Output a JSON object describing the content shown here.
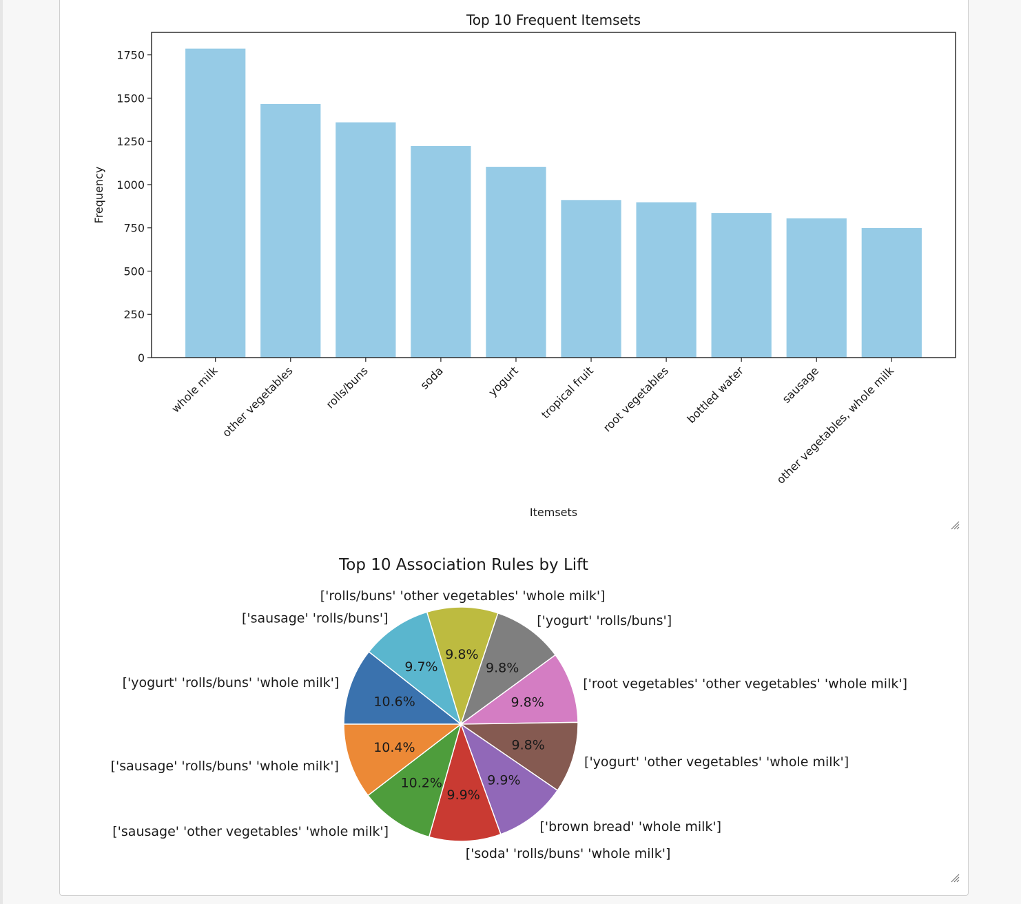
{
  "chart_data": [
    {
      "type": "bar",
      "title": "Top 10 Frequent Itemsets",
      "xlabel": "Itemsets",
      "ylabel": "Frequency",
      "categories": [
        "whole milk",
        "other vegetables",
        "rolls/buns",
        "soda",
        "yogurt",
        "tropical fruit",
        "root vegetables",
        "bottled water",
        "sausage",
        "other vegetables, whole milk"
      ],
      "values": [
        1786,
        1466,
        1360,
        1223,
        1103,
        911,
        898,
        836,
        805,
        749
      ],
      "ylim": [
        0,
        1880
      ],
      "yticks": [
        0,
        250,
        500,
        750,
        1000,
        1250,
        1500,
        1750
      ],
      "bar_color": "#96cbe6",
      "grid": false
    },
    {
      "type": "pie",
      "title": "Top 10 Association Rules by Lift",
      "start_angle": 180,
      "direction": "clockwise",
      "slices": [
        {
          "label": "['yogurt' 'rolls/buns' 'whole milk']",
          "value": 10.6,
          "pct": "10.6%",
          "color": "#3a72ae"
        },
        {
          "label": "['sausage' 'rolls/buns']",
          "value": 9.7,
          "pct": "9.7%",
          "color": "#5ab6ce"
        },
        {
          "label": "['rolls/buns' 'other vegetables' 'whole milk']",
          "value": 9.8,
          "pct": "9.8%",
          "color": "#bdbb40"
        },
        {
          "label": "['yogurt' 'rolls/buns']",
          "value": 9.8,
          "pct": "9.8%",
          "color": "#7f7f7f"
        },
        {
          "label": "['root vegetables' 'other vegetables' 'whole milk']",
          "value": 9.8,
          "pct": "9.8%",
          "color": "#d47dc3"
        },
        {
          "label": "['yogurt' 'other vegetables' 'whole milk']",
          "value": 9.8,
          "pct": "9.8%",
          "color": "#855a51"
        },
        {
          "label": "['brown bread' 'whole milk']",
          "value": 9.9,
          "pct": "9.9%",
          "color": "#9168b8"
        },
        {
          "label": "['soda' 'rolls/buns' 'whole milk']",
          "value": 9.9,
          "pct": "9.9%",
          "color": "#c93a32"
        },
        {
          "label": "['sausage' 'other vegetables' 'whole milk']",
          "value": 10.2,
          "pct": "10.2%",
          "color": "#4e9d3c"
        },
        {
          "label": "['sausage' 'rolls/buns' 'whole milk']",
          "value": 10.4,
          "pct": "10.4%",
          "color": "#ec8936"
        }
      ]
    }
  ]
}
